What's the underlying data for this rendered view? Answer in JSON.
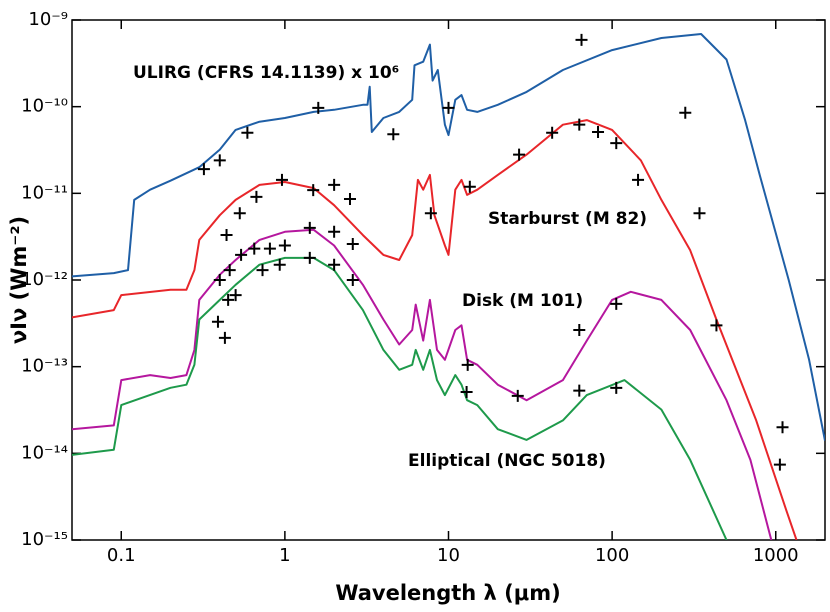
{
  "chart_data": {
    "type": "line",
    "x_label": "Wavelength λ (μm)",
    "y_label": "νIν (Wm⁻²)",
    "log_x": true,
    "log_y": true,
    "xlim": [
      0.05,
      2000
    ],
    "ylim": [
      1e-15,
      1e-09
    ],
    "xticks": [
      0.1,
      1,
      10,
      100,
      1000
    ],
    "yticks": [
      {
        "value": 1e-15,
        "label": "10⁻¹⁵"
      },
      {
        "value": 1e-14,
        "label": "10⁻¹⁴"
      },
      {
        "value": 1e-13,
        "label": "10⁻¹³"
      },
      {
        "value": 1e-12,
        "label": "10⁻¹²"
      },
      {
        "value": 1e-11,
        "label": "10⁻¹¹"
      },
      {
        "value": 1e-10,
        "label": "10⁻¹⁰"
      },
      {
        "value": 1e-09,
        "label": "10⁻⁹"
      }
    ],
    "series": [
      {
        "name": "ULIRG (CFRS 14.1139) x 10⁶",
        "color": "#1f5fa6",
        "x": [
          0.05,
          0.09,
          0.11,
          0.12,
          0.15,
          0.2,
          0.3,
          0.4,
          0.5,
          0.7,
          1,
          1.5,
          2,
          3,
          3.2,
          3.3,
          3.4,
          4,
          5,
          6,
          6.2,
          7,
          7.7,
          8,
          8.6,
          9.5,
          10,
          11,
          12,
          13,
          15,
          20,
          30,
          50,
          100,
          200,
          350,
          500,
          650,
          800,
          1200,
          1600,
          2000
        ],
        "values": [
          1.1e-12,
          1.2e-12,
          1.3e-12,
          8.4e-12,
          1.1e-11,
          1.4e-11,
          2e-11,
          3.2e-11,
          5.4e-11,
          6.7e-11,
          7.4e-11,
          8.7e-11,
          9.2e-11,
          1.05e-10,
          1.05e-10,
          1.7e-10,
          5.1e-11,
          7.4e-11,
          8.7e-11,
          1.2e-10,
          3e-10,
          3.3e-10,
          5.2e-10,
          2e-10,
          2.65e-10,
          6.2e-11,
          4.7e-11,
          1.2e-10,
          1.36e-10,
          9.2e-11,
          8.7e-11,
          1.05e-10,
          1.48e-10,
          2.65e-10,
          4.5e-10,
          6.2e-10,
          6.9e-10,
          3.5e-10,
          7e-11,
          1.6e-11,
          1e-12,
          1.2e-13,
          1.4e-14
        ]
      },
      {
        "name": "Starburst (M 82)",
        "color": "#e8262a",
        "x": [
          0.05,
          0.09,
          0.1,
          0.2,
          0.25,
          0.28,
          0.3,
          0.4,
          0.5,
          0.7,
          1,
          1.5,
          2,
          3,
          4,
          5,
          6,
          6.5,
          7,
          7.7,
          8.2,
          9.5,
          10,
          11,
          12,
          13,
          15,
          20,
          30,
          50,
          70,
          100,
          150,
          200,
          300,
          434,
          760,
          1160,
          1340
        ],
        "values": [
          3.7e-13,
          4.5e-13,
          6.7e-13,
          7.7e-13,
          7.7e-13,
          1.3e-12,
          2.9e-12,
          5.6e-12,
          8.4e-12,
          1.25e-11,
          1.35e-11,
          1.15e-11,
          7.3e-12,
          3.3e-12,
          1.95e-12,
          1.7e-12,
          3.3e-12,
          1.43e-11,
          1.1e-11,
          1.63e-11,
          5.6e-12,
          2.5e-12,
          1.95e-12,
          1.1e-11,
          1.43e-11,
          9.6e-12,
          1.1e-11,
          1.63e-11,
          2.8e-11,
          6.2e-11,
          7e-11,
          5.4e-11,
          2.4e-11,
          8.4e-12,
          2.2e-12,
          3.5e-13,
          2.4e-14,
          2.2e-15,
          1e-15
        ]
      },
      {
        "name": "Disk (M 101)",
        "color": "#b5179e",
        "x": [
          0.05,
          0.09,
          0.1,
          0.15,
          0.2,
          0.25,
          0.28,
          0.3,
          0.4,
          0.5,
          0.7,
          1,
          1.5,
          2,
          3,
          4,
          5,
          6,
          6.3,
          7,
          7.7,
          8.5,
          9.5,
          11,
          12,
          13,
          15,
          20,
          30,
          50,
          70,
          100,
          130,
          200,
          300,
          500,
          700,
          940
        ],
        "values": [
          1.9e-14,
          2.1e-14,
          7e-14,
          8e-14,
          7.4e-14,
          8e-14,
          1.56e-13,
          5.9e-13,
          1.15e-12,
          1.7e-12,
          2.9e-12,
          3.6e-12,
          3.8e-12,
          2.5e-12,
          8.8e-13,
          3.5e-13,
          1.8e-13,
          2.65e-13,
          5.2e-13,
          2e-13,
          5.9e-13,
          1.56e-13,
          1.2e-13,
          2.65e-13,
          3e-13,
          1.2e-13,
          1.05e-13,
          6.2e-14,
          4.1e-14,
          7e-14,
          2e-13,
          5.9e-13,
          7.3e-13,
          5.9e-13,
          2.65e-13,
          4.1e-14,
          8.4e-15,
          1e-15
        ]
      },
      {
        "name": "Elliptical (NGC 5018)",
        "color": "#1e9a4b",
        "x": [
          0.05,
          0.09,
          0.1,
          0.2,
          0.25,
          0.28,
          0.3,
          0.4,
          0.5,
          0.7,
          1,
          1.5,
          2,
          3,
          4,
          5,
          6,
          6.3,
          7,
          7.7,
          8.5,
          9.5,
          11,
          12,
          13,
          15,
          20,
          30,
          50,
          70,
          119,
          200,
          300,
          500
        ],
        "values": [
          9.6e-15,
          1.1e-14,
          3.6e-14,
          5.7e-14,
          6.2e-14,
          1.05e-13,
          3.5e-13,
          5.9e-13,
          8.8e-13,
          1.5e-12,
          1.8e-12,
          1.8e-12,
          1.3e-12,
          4.5e-13,
          1.56e-13,
          9.2e-14,
          1.05e-13,
          1.56e-13,
          9.2e-14,
          1.56e-13,
          7e-14,
          4.7e-14,
          8e-14,
          6.2e-14,
          4.1e-14,
          3.6e-14,
          1.9e-14,
          1.43e-14,
          2.4e-14,
          4.7e-14,
          7e-14,
          3.2e-14,
          8.4e-15,
          1e-15
        ]
      }
    ],
    "markers": {
      "color": "#000000",
      "x": [
        65,
        280,
        10,
        4.6,
        1.6,
        0.59,
        0.4,
        0.32,
        27,
        43,
        63,
        82,
        106,
        144,
        342,
        13.5,
        7.8,
        2.0,
        1.49,
        2.5,
        0.96,
        0.67,
        0.53,
        0.44,
        63,
        106,
        2.6,
        2.0,
        1.42,
        1.0,
        0.81,
        0.65,
        0.54,
        0.46,
        0.4,
        63,
        26.5,
        106,
        13.1,
        12.9,
        2.6,
        2.0,
        1.42,
        0.93,
        0.73,
        0.5,
        0.45,
        0.39,
        0.43,
        434,
        1100,
        1060
      ],
      "values": [
        5.9e-10,
        8.5e-11,
        9.7e-11,
        4.8e-11,
        9.7e-11,
        5e-11,
        2.4e-11,
        1.9e-11,
        2.8e-11,
        5e-11,
        6.2e-11,
        5.1e-11,
        3.8e-11,
        1.43e-11,
        5.9e-12,
        1.19e-11,
        5.9e-12,
        1.25e-11,
        1.09e-11,
        8.6e-12,
        1.43e-11,
        9.1e-12,
        5.9e-12,
        3.3e-12,
        2.65e-13,
        5.3e-13,
        2.6e-12,
        3.6e-12,
        4e-12,
        2.5e-12,
        2.3e-12,
        2.3e-12,
        1.95e-12,
        1.3e-12,
        1e-12,
        5.3e-14,
        4.6e-14,
        5.7e-14,
        1.05e-13,
        5.1e-14,
        1e-12,
        1.5e-12,
        1.8e-12,
        1.5e-12,
        1.3e-12,
        6.7e-13,
        5.9e-13,
        3.3e-13,
        2.15e-13,
        3e-13,
        2e-14,
        7.4e-15
      ]
    }
  }
}
